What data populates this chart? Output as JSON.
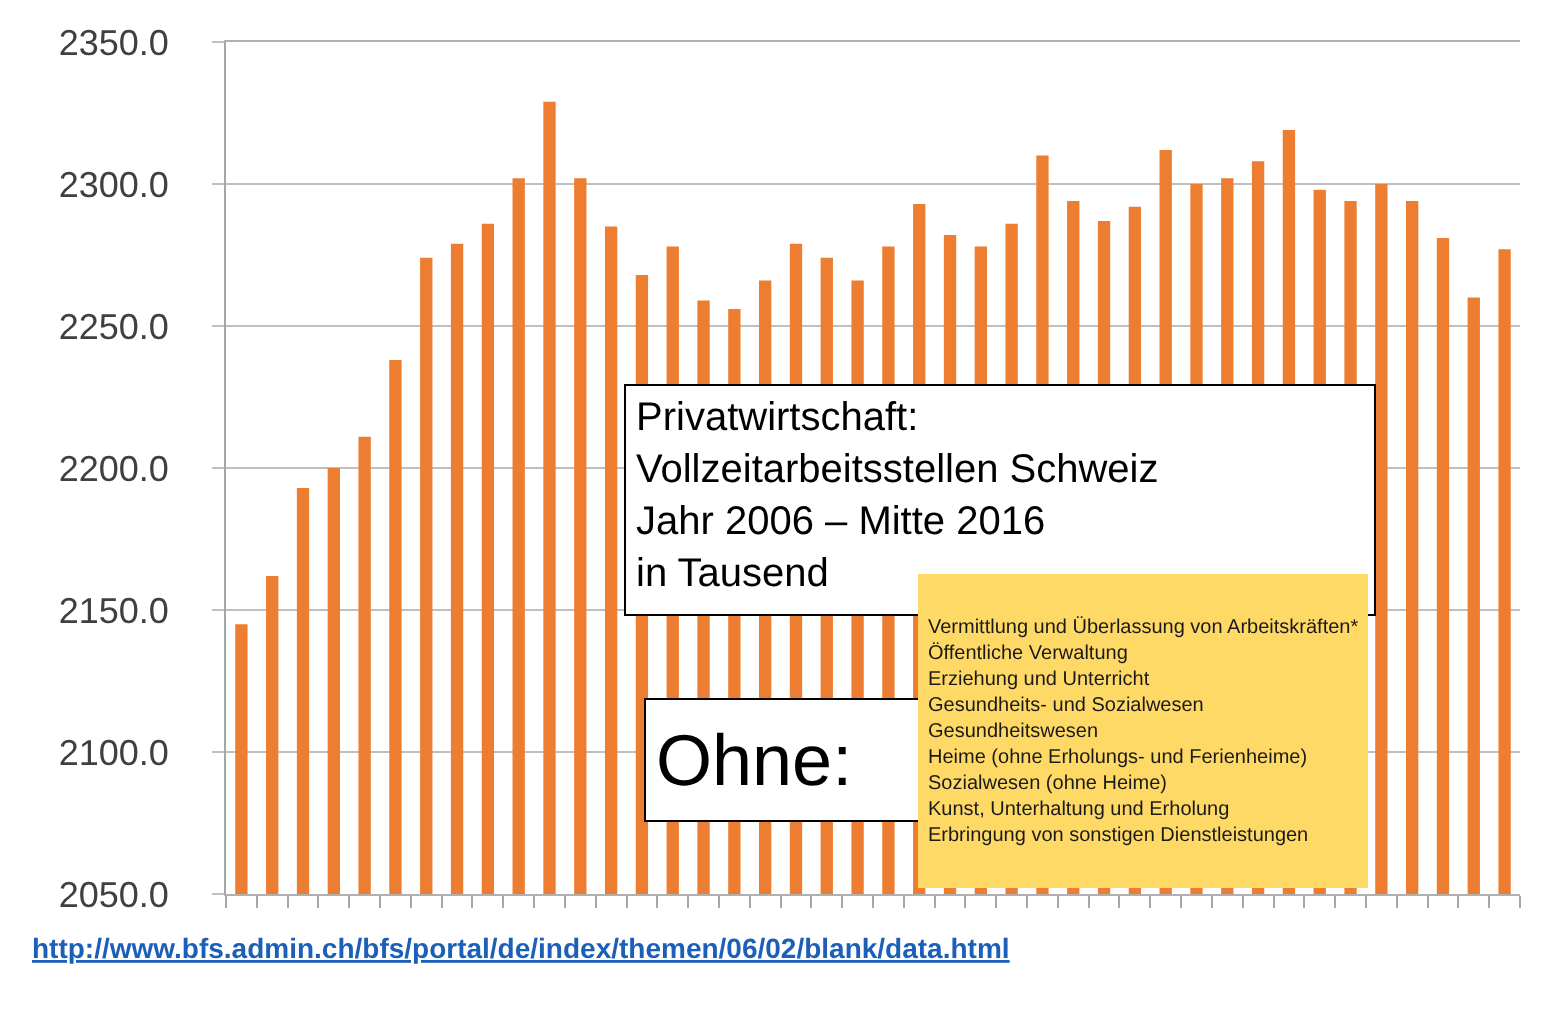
{
  "chart_data": {
    "type": "bar",
    "title": "Privatwirtschaft:\nVollzeitarbeitsstellen Schweiz\nJahr 2006 – Mitte 2016\nin Tausend",
    "categories": [
      null,
      null,
      null,
      null,
      null,
      null,
      null,
      null,
      null,
      null,
      null,
      null,
      null,
      null,
      null,
      null,
      null,
      null,
      null,
      null,
      null,
      null,
      null,
      null,
      null,
      null,
      null,
      null,
      null,
      null,
      null,
      null,
      null,
      null,
      null,
      null,
      null,
      null,
      null,
      null,
      null,
      null
    ],
    "values": [
      2145,
      2162,
      2193,
      2200,
      2211,
      2238,
      2274,
      2279,
      2286,
      2302,
      2329,
      2302,
      2285,
      2268,
      2278,
      2259,
      2256,
      2266,
      2279,
      2274,
      2266,
      2278,
      2293,
      2282,
      2278,
      2286,
      2310,
      2294,
      2287,
      2292,
      2312,
      2300,
      2302,
      2308,
      2319,
      2298,
      2294,
      2300,
      2294,
      2281,
      2260,
      2277
    ],
    "color": "#ed7d31",
    "ylim": [
      2050,
      2350
    ],
    "yticks": [
      {
        "value": 2050,
        "label": "2050.0"
      },
      {
        "value": 2100,
        "label": "2100.0"
      },
      {
        "value": 2150,
        "label": "2150.0"
      },
      {
        "value": 2200,
        "label": "2200.0"
      },
      {
        "value": 2250,
        "label": "2250.0"
      },
      {
        "value": 2300,
        "label": "2300.0"
      },
      {
        "value": 2350,
        "label": "2350.0"
      }
    ],
    "grid": "y",
    "annotations": [
      "Ohne:",
      "Vermittlung und Überlassung von Arbeitskräften*\nÖffentliche Verwaltung\nErziehung und Unterricht\nGesundheits- und Sozialwesen\nGesundheitswesen\nHeime (ohne Erholungs- und Ferienheime)\nSozialwesen (ohne Heime)\nKunst, Unterhaltung und Erholung\nErbringung von sonstigen Dienstleistungen",
      "http://www.bfs.admin.ch/bfs/portal/de/index/themen/06/02/blank/data.html"
    ]
  }
}
